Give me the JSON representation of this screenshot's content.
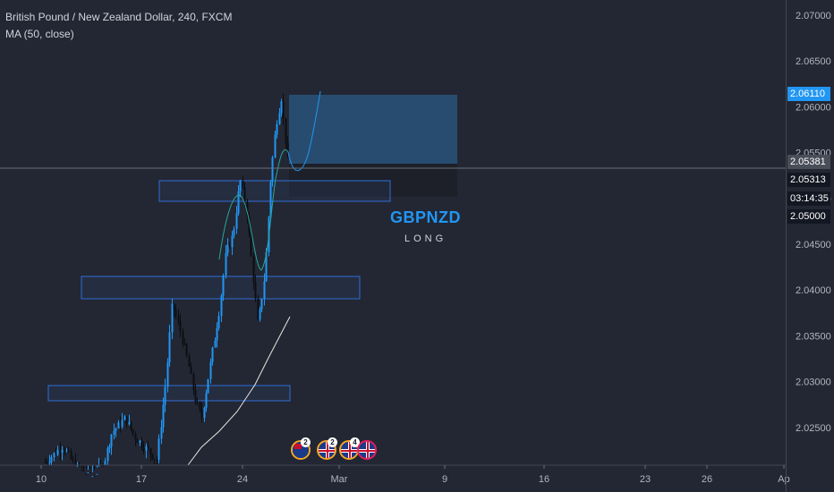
{
  "legend": {
    "title": "British Pound / New Zealand Dollar, 240, FXCM",
    "indicator": "MA (50, close)"
  },
  "annotation": {
    "title": "GBPNZD",
    "subtitle": "LONG",
    "title_color": "#2196f3"
  },
  "price_axis": {
    "ticks": [
      "2.07000",
      "2.06500",
      "2.06000",
      "2.05500",
      "2.05000",
      "2.04500",
      "2.04000",
      "2.03500",
      "2.03000",
      "2.02500"
    ],
    "badges": {
      "last_price": "2.06110",
      "crosshair_price": "2.05381",
      "price_2": "2.05313",
      "countdown": "03:14:35",
      "price_3": "2.05000"
    }
  },
  "time_axis": {
    "ticks": [
      "10",
      "17",
      "24",
      "Mar",
      "9",
      "16",
      "23",
      "26",
      "Ap"
    ]
  },
  "events": [
    {
      "icon": "nz-flag-icon",
      "count": "2"
    },
    {
      "icon": "uk-flag-icon",
      "count": "2"
    },
    {
      "icon": "uk-flag-icon",
      "count": "4"
    },
    {
      "icon": "uk-flag-icon",
      "count": ""
    }
  ],
  "colors": {
    "background": "#232733",
    "candle": "#2196f3",
    "candle_down": "#0c0e13",
    "ma_line": "#e8e6e0",
    "zone_border": "#2f6ed8",
    "target_zone": "#2b5a85",
    "stop_zone": "#1d2028"
  }
}
